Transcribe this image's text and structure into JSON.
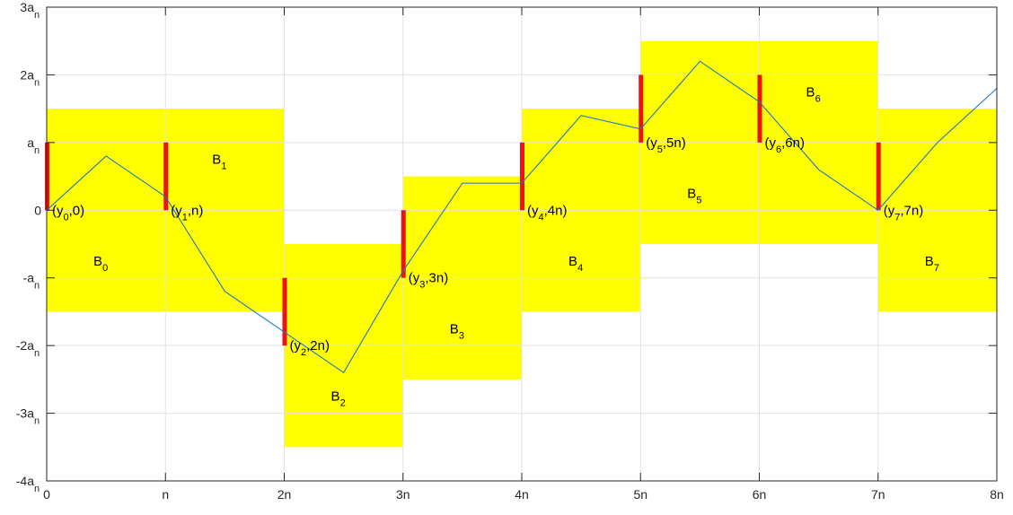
{
  "chart_data": {
    "type": "line",
    "title": "",
    "xlabel": "",
    "ylabel": "",
    "xlim": [
      0,
      8
    ],
    "ylim": [
      -4,
      3
    ],
    "grid": true,
    "x_ticks": [
      {
        "value": 0,
        "label": "0"
      },
      {
        "value": 1,
        "label": "n"
      },
      {
        "value": 2,
        "label": "2n"
      },
      {
        "value": 3,
        "label": "3n"
      },
      {
        "value": 4,
        "label": "4n"
      },
      {
        "value": 5,
        "label": "5n"
      },
      {
        "value": 6,
        "label": "6n"
      },
      {
        "value": 7,
        "label": "7n"
      },
      {
        "value": 8,
        "label": "8n"
      }
    ],
    "y_ticks": [
      {
        "value": 3,
        "base": "3a",
        "sub": "n"
      },
      {
        "value": 2,
        "base": "2a",
        "sub": "n"
      },
      {
        "value": 1,
        "base": "a",
        "sub": "n"
      },
      {
        "value": 0,
        "base": "0",
        "sub": ""
      },
      {
        "value": -1,
        "base": "-a",
        "sub": "n"
      },
      {
        "value": -2,
        "base": "-2a",
        "sub": "n"
      },
      {
        "value": -3,
        "base": "-3a",
        "sub": "n"
      },
      {
        "value": -4,
        "base": "-4a",
        "sub": "n"
      }
    ],
    "boxes": [
      {
        "name": "B",
        "sub": "0",
        "x0": 0,
        "x1": 1,
        "y0": -1.5,
        "y1": 1.5,
        "label_x": 0.5,
        "label_y": -0.75
      },
      {
        "name": "B",
        "sub": "1",
        "x0": 1,
        "x1": 2,
        "y0": -1.5,
        "y1": 1.5,
        "label_x": 1.5,
        "label_y": 0.75
      },
      {
        "name": "B",
        "sub": "2",
        "x0": 2,
        "x1": 3,
        "y0": -3.5,
        "y1": -0.5,
        "label_x": 2.5,
        "label_y": -2.75
      },
      {
        "name": "B",
        "sub": "3",
        "x0": 3,
        "x1": 4,
        "y0": -2.5,
        "y1": 0.5,
        "label_x": 3.5,
        "label_y": -1.75
      },
      {
        "name": "B",
        "sub": "4",
        "x0": 4,
        "x1": 5,
        "y0": -1.5,
        "y1": 1.5,
        "label_x": 4.5,
        "label_y": -0.75
      },
      {
        "name": "B",
        "sub": "5",
        "x0": 5,
        "x1": 6,
        "y0": -0.5,
        "y1": 2.5,
        "label_x": 5.5,
        "label_y": 0.25
      },
      {
        "name": "B",
        "sub": "6",
        "x0": 6,
        "x1": 7,
        "y0": -0.5,
        "y1": 2.5,
        "label_x": 6.5,
        "label_y": 1.75
      },
      {
        "name": "B",
        "sub": "7",
        "x0": 7,
        "x1": 8,
        "y0": -1.5,
        "y1": 1.5,
        "label_x": 7.5,
        "label_y": -0.75
      }
    ],
    "red_bars": [
      {
        "x": 0,
        "y0": 0,
        "y1": 1
      },
      {
        "x": 1,
        "y0": 0,
        "y1": 1
      },
      {
        "x": 2,
        "y0": -2,
        "y1": -1
      },
      {
        "x": 3,
        "y0": -1,
        "y1": 0
      },
      {
        "x": 4,
        "y0": 0,
        "y1": 1
      },
      {
        "x": 5,
        "y0": 1,
        "y1": 2
      },
      {
        "x": 6,
        "y0": 1,
        "y1": 2
      },
      {
        "x": 7,
        "y0": 0,
        "y1": 1
      }
    ],
    "point_labels": [
      {
        "sub": "0",
        "suffix": ",0)",
        "x": 0,
        "y": 0
      },
      {
        "sub": "1",
        "suffix": ",n)",
        "x": 1,
        "y": 0
      },
      {
        "sub": "2",
        "suffix": ",2n)",
        "x": 2,
        "y": -2
      },
      {
        "sub": "3",
        "suffix": ",3n)",
        "x": 3,
        "y": -1
      },
      {
        "sub": "4",
        "suffix": ",4n)",
        "x": 4,
        "y": 0
      },
      {
        "sub": "5",
        "suffix": ",5n)",
        "x": 5,
        "y": 1
      },
      {
        "sub": "6",
        "suffix": ",6n)",
        "x": 6,
        "y": 1
      },
      {
        "sub": "7",
        "suffix": ",7n)",
        "x": 7,
        "y": 0
      }
    ],
    "series": [
      {
        "x": [
          0,
          0.5,
          1,
          1.5,
          2,
          2.5,
          3,
          3.5,
          4,
          4.5,
          5,
          5.5,
          6,
          6.5,
          7,
          7.5,
          8
        ],
        "values": [
          0,
          0.8,
          0.2,
          -1.2,
          -1.8,
          -2.4,
          -0.9,
          0.4,
          0.4,
          1.4,
          1.2,
          2.2,
          1.6,
          0.6,
          0,
          1.0,
          1.8
        ]
      }
    ],
    "colors": {
      "box": "#ffff00",
      "bar": "#ee1111",
      "line": "#1f78c4",
      "grid": "#e2e2e2",
      "axis": "#262626"
    }
  }
}
